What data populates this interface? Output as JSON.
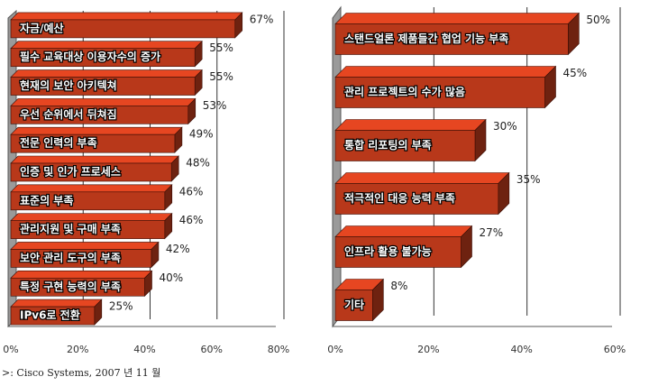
{
  "chart_data": [
    {
      "type": "bar",
      "orientation": "horizontal",
      "color": "#b8381a",
      "categories": [
        "자금/예산",
        "필수 교육대상 이용자수의 증가",
        "현재의 보안 아키텍쳐",
        "우선 순위에서 뒤쳐짐",
        "전문 인력의 부족",
        "인증 및 인가 프로세스",
        "표준의 부족",
        "관리지원 및 구매 부족",
        "보안 관리 도구의 부족",
        "특정 구현 능력의 부족",
        "IPv6로 전환"
      ],
      "values": [
        67,
        55,
        55,
        53,
        49,
        48,
        46,
        46,
        42,
        40,
        25
      ],
      "value_labels": [
        "67%",
        "55%",
        "55%",
        "53%",
        "49%",
        "48%",
        "46%",
        "46%",
        "42%",
        "40%",
        "25%"
      ],
      "xlim": [
        0,
        80
      ],
      "xticks": [
        {
          "value": 0,
          "label": "0%"
        },
        {
          "value": 20,
          "label": "20%"
        },
        {
          "value": 40,
          "label": "40%"
        },
        {
          "value": 60,
          "label": "60%"
        },
        {
          "value": 80,
          "label": "80%"
        }
      ],
      "grid": true
    },
    {
      "type": "bar",
      "orientation": "horizontal",
      "color": "#b8381a",
      "categories": [
        "스탠드얼론 제품들간 협업 기능 부족",
        "관리 프로젝트의 수가 많음",
        "통합 리포팅의 부족",
        "적극적인 대응 능력 부족",
        "인프라 활용 불가능",
        "기타"
      ],
      "values": [
        50,
        45,
        30,
        35,
        27,
        8
      ],
      "value_labels": [
        "50%",
        "45%",
        "30%",
        "35%",
        "27%",
        "8%"
      ],
      "xlim": [
        0,
        60
      ],
      "xticks": [
        {
          "value": 0,
          "label": "0%"
        },
        {
          "value": 20,
          "label": "20%"
        },
        {
          "value": 40,
          "label": "40%"
        },
        {
          "value": 60,
          "label": "60%"
        }
      ],
      "grid": true
    }
  ],
  "source": ">: Cisco Systems, 2007 년 11 월"
}
